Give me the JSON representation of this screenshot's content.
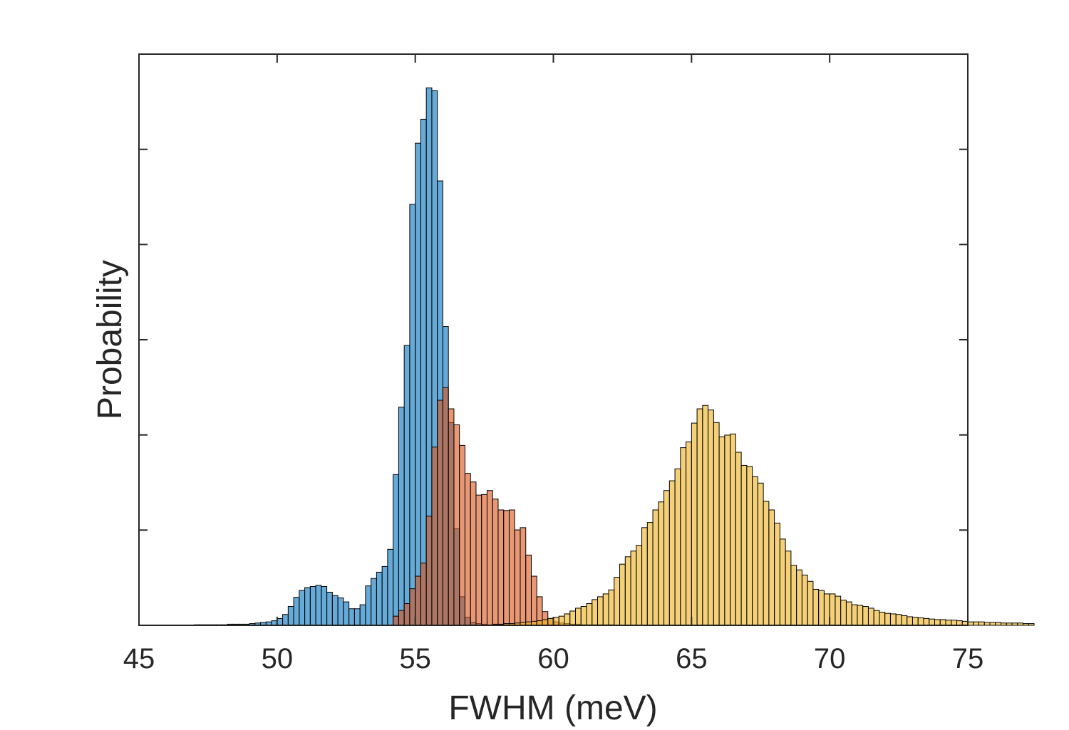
{
  "chart_data": {
    "type": "histogram",
    "title": "",
    "xlabel": "FWHM (meV)",
    "ylabel": "Probability",
    "xlim": [
      45,
      75
    ],
    "ylim": [
      0,
      1.0
    ],
    "xticks": [
      45,
      50,
      55,
      60,
      65,
      70,
      75
    ],
    "xtick_labels": [
      "45",
      "50",
      "55",
      "60",
      "65",
      "70",
      "75"
    ],
    "yticks": [
      0.1667,
      0.3333,
      0.5,
      0.6667,
      0.8333
    ],
    "ytick_labels_shown": false,
    "grid": false,
    "box": true,
    "bin_width": 0.2,
    "x_start": 47.0,
    "series": [
      {
        "color": "#0072BD",
        "face_alpha": 0.6,
        "values": [
          0.001,
          0.001,
          0.001,
          0.001,
          0.001,
          0.001,
          0.002,
          0.002,
          0.002,
          0.002,
          0.003,
          0.004,
          0.005,
          0.006,
          0.008,
          0.012,
          0.019,
          0.033,
          0.049,
          0.061,
          0.066,
          0.068,
          0.07,
          0.068,
          0.058,
          0.052,
          0.048,
          0.041,
          0.029,
          0.029,
          0.036,
          0.069,
          0.082,
          0.093,
          0.103,
          0.133,
          0.264,
          0.382,
          0.49,
          0.737,
          0.844,
          0.886,
          0.941,
          0.936,
          0.778,
          0.523,
          0.355,
          0.169,
          0.05,
          0.014,
          0.005,
          0.003,
          0.002,
          0.001,
          0.001,
          0.001,
          0.001,
          0,
          0,
          0,
          0,
          0,
          0,
          0,
          0,
          0,
          0,
          0,
          0,
          0,
          0,
          0,
          0,
          0,
          0,
          0,
          0,
          0,
          0,
          0,
          0,
          0,
          0,
          0,
          0,
          0,
          0,
          0,
          0,
          0,
          0,
          0,
          0,
          0,
          0,
          0,
          0,
          0,
          0,
          0,
          0,
          0,
          0,
          0,
          0,
          0,
          0,
          0,
          0,
          0,
          0,
          0,
          0,
          0,
          0,
          0,
          0,
          0,
          0,
          0,
          0,
          0,
          0,
          0,
          0,
          0,
          0,
          0,
          0,
          0,
          0,
          0,
          0,
          0,
          0,
          0,
          0,
          0,
          0,
          0,
          0,
          0,
          0,
          0,
          0,
          0,
          0,
          0,
          0,
          0,
          0,
          0,
          0,
          0,
          0,
          0,
          0,
          0
        ]
      },
      {
        "color": "#D95319",
        "face_alpha": 0.6,
        "values": [
          0,
          0,
          0,
          0,
          0,
          0,
          0,
          0,
          0,
          0,
          0,
          0,
          0,
          0,
          0,
          0,
          0,
          0,
          0,
          0,
          0,
          0,
          0,
          0,
          0,
          0,
          0,
          0,
          0,
          0,
          0,
          0,
          0,
          0,
          0,
          0,
          0.016,
          0.026,
          0.038,
          0.064,
          0.086,
          0.109,
          0.191,
          0.312,
          0.394,
          0.416,
          0.379,
          0.351,
          0.315,
          0.266,
          0.251,
          0.228,
          0.229,
          0.236,
          0.221,
          0.202,
          0.201,
          0.202,
          0.167,
          0.171,
          0.123,
          0.086,
          0.05,
          0.024,
          0.012,
          0.006,
          0.004,
          0.003,
          0.002,
          0.002,
          0.001,
          0.001,
          0.001,
          0.001,
          0.001,
          0.001,
          0,
          0,
          0,
          0,
          0,
          0,
          0,
          0,
          0,
          0,
          0,
          0,
          0,
          0,
          0,
          0,
          0,
          0,
          0,
          0,
          0,
          0,
          0,
          0,
          0,
          0,
          0,
          0,
          0,
          0,
          0,
          0,
          0,
          0,
          0,
          0,
          0,
          0,
          0,
          0,
          0,
          0,
          0,
          0,
          0,
          0,
          0,
          0,
          0,
          0,
          0,
          0,
          0,
          0,
          0,
          0,
          0,
          0,
          0,
          0,
          0,
          0,
          0,
          0,
          0,
          0,
          0,
          0,
          0,
          0,
          0,
          0,
          0,
          0,
          0,
          0,
          0,
          0,
          0,
          0,
          0,
          0
        ]
      },
      {
        "color": "#EDB120",
        "face_alpha": 0.6,
        "values": [
          0,
          0,
          0,
          0,
          0,
          0,
          0,
          0,
          0,
          0,
          0,
          0,
          0,
          0,
          0,
          0,
          0,
          0,
          0,
          0,
          0,
          0,
          0,
          0,
          0,
          0,
          0,
          0,
          0,
          0,
          0,
          0,
          0,
          0,
          0,
          0,
          0,
          0,
          0,
          0,
          0,
          0,
          0,
          0,
          0,
          0,
          0,
          0,
          0,
          0,
          0,
          0,
          0,
          0,
          0.002,
          0.002,
          0.003,
          0.003,
          0.004,
          0.005,
          0.006,
          0.007,
          0.008,
          0.01,
          0.012,
          0.014,
          0.016,
          0.02,
          0.025,
          0.03,
          0.033,
          0.038,
          0.045,
          0.05,
          0.055,
          0.062,
          0.084,
          0.107,
          0.12,
          0.13,
          0.14,
          0.171,
          0.18,
          0.202,
          0.216,
          0.236,
          0.253,
          0.274,
          0.311,
          0.321,
          0.354,
          0.379,
          0.385,
          0.377,
          0.355,
          0.33,
          0.333,
          0.335,
          0.303,
          0.28,
          0.278,
          0.26,
          0.249,
          0.217,
          0.202,
          0.179,
          0.151,
          0.13,
          0.105,
          0.097,
          0.088,
          0.077,
          0.063,
          0.061,
          0.055,
          0.055,
          0.051,
          0.044,
          0.041,
          0.036,
          0.035,
          0.033,
          0.03,
          0.026,
          0.023,
          0.021,
          0.02,
          0.019,
          0.017,
          0.015,
          0.014,
          0.013,
          0.012,
          0.011,
          0.01,
          0.01,
          0.009,
          0.009,
          0.008,
          0.007,
          0.006,
          0.006,
          0.006,
          0.005,
          0.005,
          0.005,
          0.004,
          0.004,
          0.004,
          0.004,
          0.003,
          0.003
        ]
      }
    ]
  }
}
